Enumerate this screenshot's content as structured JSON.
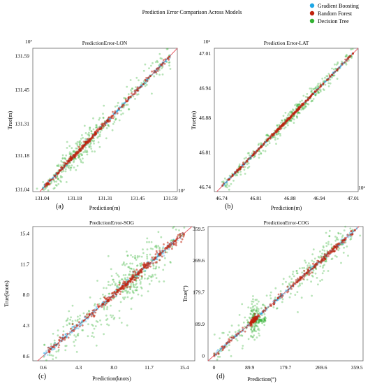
{
  "figure": {
    "title": "Prediction Error Comparison Across Models",
    "legend": [
      {
        "label": "Gradient Boosting",
        "color": "#1ea7e6"
      },
      {
        "label": "Random Forest",
        "color": "#c0220c"
      },
      {
        "label": "Decision Tree",
        "color": "#33b233"
      }
    ],
    "identity_line_color": "#e8616b"
  },
  "chart_data": [
    {
      "type": "scatter",
      "title": "PredictionError-LON",
      "panel_label": "(a)",
      "xlabel": "Prediction(m)",
      "ylabel": "True(m)",
      "x_ticks": [
        "131.04",
        "131.18",
        "131.31",
        "131.45",
        "131.59"
      ],
      "y_ticks": [
        "131.04",
        "131.18",
        "131.31",
        "131.45",
        "131.59"
      ],
      "x_tick_values": [
        131.04,
        131.18,
        131.31,
        131.45,
        131.59
      ],
      "y_tick_values": [
        131.04,
        131.18,
        131.31,
        131.45,
        131.59
      ],
      "exponent_top": "10⁷",
      "exponent_right": "10⁷",
      "xlim": [
        131.0,
        131.62
      ],
      "ylim": [
        131.03,
        131.62
      ],
      "legend": "top-right of figure",
      "grid": false,
      "dt_spread": 0.03,
      "dense_center": 131.2
    },
    {
      "type": "scatter",
      "title": "Prediction Error-LAT",
      "panel_label": "(b)",
      "xlabel": "Prediction(m)",
      "ylabel": "True(m)",
      "x_ticks": [
        "46.74",
        "46.81",
        "46.88",
        "46.94",
        "47.01"
      ],
      "y_ticks": [
        "46.74",
        "46.81",
        "46.88",
        "46.94",
        "47.01"
      ],
      "x_tick_values": [
        46.74,
        46.81,
        46.88,
        46.94,
        47.01
      ],
      "y_tick_values": [
        46.74,
        46.81,
        46.88,
        46.94,
        47.01
      ],
      "exponent_top": "10⁶",
      "exponent_right": "10⁶",
      "xlim": [
        46.725,
        47.02
      ],
      "ylim": [
        46.73,
        47.02
      ],
      "grid": false,
      "dt_spread": 0.008,
      "dense_center": 46.88
    },
    {
      "type": "scatter",
      "title": "PredictionError-SOG",
      "panel_label": "(c)",
      "xlabel": "Prediction(knots)",
      "ylabel": "True(knots)",
      "x_ticks": [
        "0.6",
        "4.3",
        "8.0",
        "11.7",
        "15.4"
      ],
      "y_ticks": [
        "0.6",
        "4.3",
        "8.0",
        "11.7",
        "15.4"
      ],
      "x_tick_values": [
        0.6,
        4.3,
        8.0,
        11.7,
        15.4
      ],
      "y_tick_values": [
        0.6,
        4.3,
        8.0,
        11.7,
        15.4
      ],
      "xlim": [
        -0.5,
        16.5
      ],
      "ylim": [
        0.0,
        16.2
      ],
      "grid": false,
      "dt_spread": 1.6,
      "dense_center": 10.0
    },
    {
      "type": "scatter",
      "title": "PredictionError-COG",
      "panel_label": "(d)",
      "xlabel": "Prediction(°)",
      "ylabel": "True(°)",
      "x_ticks": [
        "0",
        "89.9",
        "179.7",
        "269.6",
        "359.5"
      ],
      "y_ticks": [
        "0",
        "89.9",
        "179.7",
        "269.6",
        "359.5"
      ],
      "x_tick_values": [
        0,
        89.9,
        179.7,
        269.6,
        359.5
      ],
      "y_tick_values": [
        0,
        89.9,
        179.7,
        269.6,
        359.5
      ],
      "xlim": [
        -15,
        375
      ],
      "ylim": [
        -15,
        365
      ],
      "grid": false,
      "dt_spread": 25,
      "dense_center": 270
    }
  ]
}
